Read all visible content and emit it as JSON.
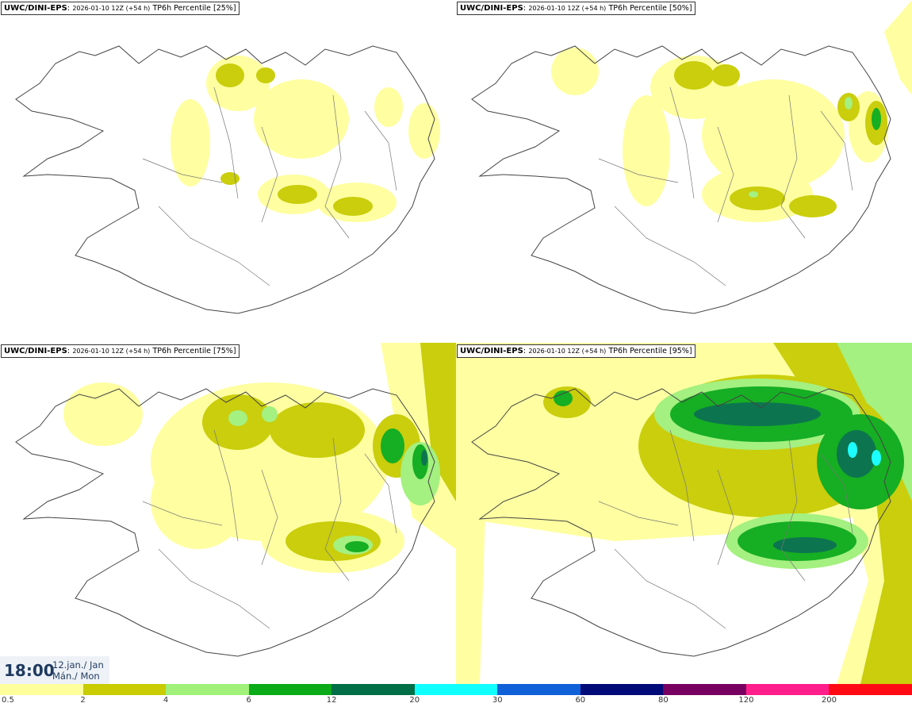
{
  "panels": [
    {
      "model": "UWC/DINI-EPS",
      "run": "2026-01-10 12Z (+54 h)",
      "parameter": "TP6h Percentile [25%]",
      "percentile": 25
    },
    {
      "model": "UWC/DINI-EPS",
      "run": "2026-01-10 12Z (+54 h)",
      "parameter": "TP6h Percentile [50%]",
      "percentile": 50
    },
    {
      "model": "UWC/DINI-EPS",
      "run": "2026-01-10 12Z (+54 h)",
      "parameter": "TP6h Percentile [75%]",
      "percentile": 75
    },
    {
      "model": "UWC/DINI-EPS",
      "run": "2026-01-10 12Z (+54 h)",
      "parameter": "TP6h Percentile [95%]",
      "percentile": 95
    }
  ],
  "valid_time": {
    "time": "18:00",
    "date_line1": "12.jan./ Jan",
    "date_line2": "Mán./ Mon"
  },
  "legend": {
    "thresholds": [
      "0.5",
      "2",
      "4",
      "6",
      "12",
      "20",
      "30",
      "60",
      "80",
      "120",
      "200"
    ],
    "colors": [
      "#ffff9c",
      "#c8cc00",
      "#a0f07a",
      "#0aaa18",
      "#006e46",
      "#10ffff",
      "#1060d8",
      "#000a78",
      "#780060",
      "#ff1e8c",
      "#ff0a14"
    ]
  }
}
